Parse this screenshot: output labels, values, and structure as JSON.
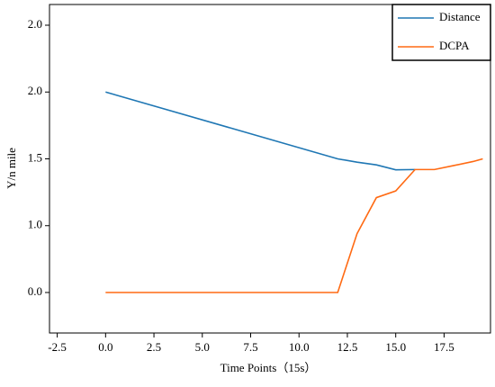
{
  "chart_data": {
    "type": "line",
    "xlabel": "Time Points（15s）",
    "ylabel": "Y/n mile",
    "xlim": [
      -2.9,
      19.9
    ],
    "xticks": [
      {
        "value": -2.5,
        "label": "-2.5"
      },
      {
        "value": 0,
        "label": "0.0"
      },
      2.5,
      {
        "value": 5,
        "label": "5.0"
      },
      7.5,
      {
        "value": 10,
        "label": "10.0"
      },
      12.5,
      {
        "value": 15,
        "label": "15.0"
      },
      17.5
    ],
    "yticks": [
      {
        "value": 0,
        "label": "0.0"
      },
      {
        "value": 1,
        "label": "1.0"
      },
      1.5,
      {
        "value": 2,
        "label": "2.0"
      },
      {
        "value": 2,
        "label": "2.0"
      }
    ],
    "legend": "upper right",
    "series": [
      {
        "name": "Distance",
        "color": "#1f77b4",
        "x": [
          0,
          12,
          13,
          14,
          15,
          16
        ],
        "values": [
          2.0,
          1.5,
          1.475,
          1.455,
          1.418,
          1.42
        ]
      },
      {
        "name": "DCPA",
        "color": "#ff6a13",
        "x": [
          0,
          12,
          13,
          14,
          15,
          16,
          17,
          18,
          19,
          19.5
        ],
        "values": [
          0,
          0,
          0.88,
          1.21,
          1.26,
          1.42,
          1.42,
          1.45,
          1.48,
          1.5
        ]
      }
    ]
  }
}
